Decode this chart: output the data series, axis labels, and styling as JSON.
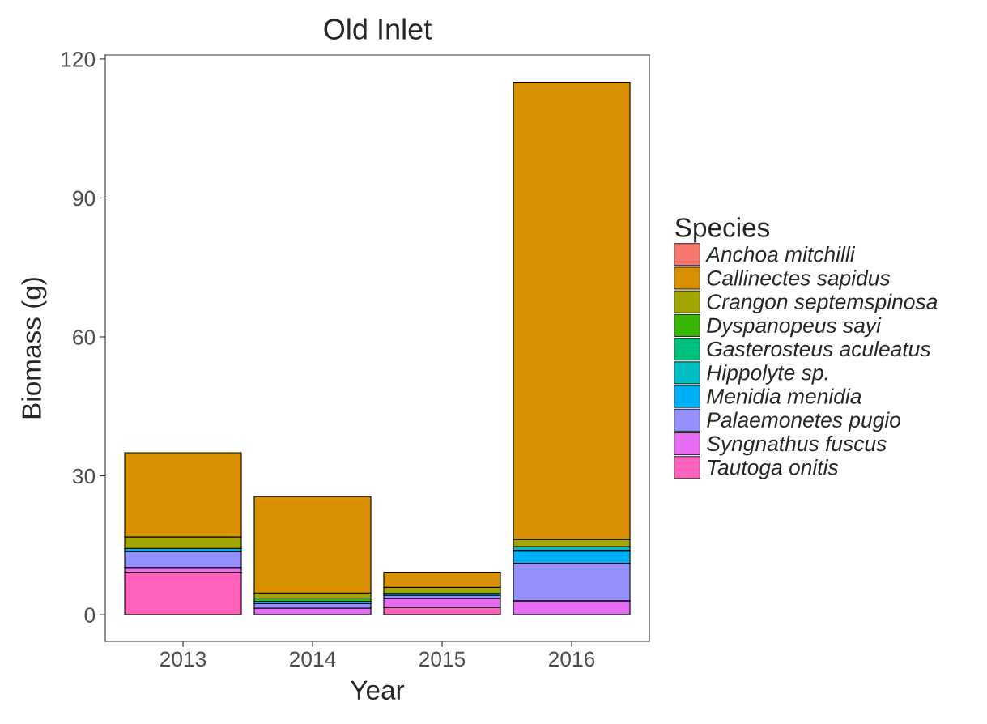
{
  "chart_data": {
    "type": "bar",
    "title": "Old Inlet",
    "xlabel": "Year",
    "ylabel": "Biomass (g)",
    "legend_title": "Species",
    "categories": [
      "2013",
      "2014",
      "2015",
      "2016"
    ],
    "stacked": true,
    "ylim": [
      -5.76,
      120.86
    ],
    "yticks": [
      0,
      30,
      60,
      90,
      120
    ],
    "grid": false,
    "legend": "right",
    "series": [
      {
        "name": "Tautoga onitis",
        "color": "#ff62bc",
        "values": [
          9.2,
          null,
          1.6,
          null
        ]
      },
      {
        "name": "Syngnathus fuscus",
        "color": "#e76bf3",
        "values": [
          1.0,
          1.4,
          1.9,
          3.0
        ]
      },
      {
        "name": "Palaemonetes pugio",
        "color": "#9590ff",
        "values": [
          3.5,
          1.0,
          0.7,
          8.1
        ]
      },
      {
        "name": "Menidia menidia",
        "color": "#00b0f6",
        "values": [
          0.6,
          0.5,
          0.4,
          2.8
        ]
      },
      {
        "name": "Hippolyte sp.",
        "color": "#00bfc4",
        "values": [
          null,
          null,
          null,
          0.8
        ]
      },
      {
        "name": "Gasterosteus aculeatus",
        "color": "#00bf7d",
        "values": [
          null,
          null,
          null,
          null
        ]
      },
      {
        "name": "Dyspanopeus sayi",
        "color": "#39b600",
        "values": [
          null,
          0.7,
          null,
          null
        ]
      },
      {
        "name": "Crangon septemspinosa",
        "color": "#a3a500",
        "values": [
          2.5,
          1.1,
          1.3,
          1.6
        ]
      },
      {
        "name": "Callinectes sapidus",
        "color": "#d89000",
        "values": [
          18.2,
          20.8,
          3.3,
          98.7
        ]
      },
      {
        "name": "Anchoa mitchilli",
        "color": "#f8766d",
        "values": [
          null,
          null,
          null,
          null
        ]
      }
    ]
  }
}
